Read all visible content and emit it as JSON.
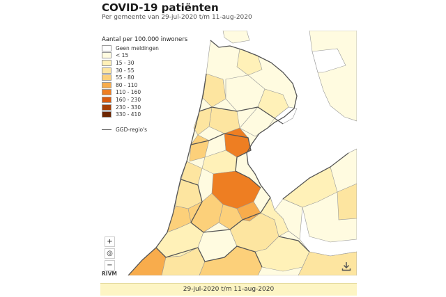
{
  "header": {
    "title": "COVID-19 patiënten",
    "subtitle": "Per gemeente van 29-jul-2020 t/m 11-aug-2020"
  },
  "legend": {
    "title": "Aantal per 100.000 inwoners",
    "items": [
      {
        "label": "Geen meldingen",
        "color": "#ffffff"
      },
      {
        "label": "< 15",
        "color": "#fffbe0"
      },
      {
        "label": "15 - 30",
        "color": "#fff1b8"
      },
      {
        "label": "30 - 55",
        "color": "#fde5a0"
      },
      {
        "label": "55 - 80",
        "color": "#fcd07a"
      },
      {
        "label": "80 - 110",
        "color": "#f8ac4c"
      },
      {
        "label": "110 - 160",
        "color": "#ee7e22"
      },
      {
        "label": "160 - 230",
        "color": "#d95a0f"
      },
      {
        "label": "230 - 330",
        "color": "#a63e06"
      },
      {
        "label": "330 - 410",
        "color": "#6b2500"
      }
    ],
    "line_label": "GGD-regio's"
  },
  "controls": {
    "zoom_in": "+",
    "zoom_reset": "◎",
    "zoom_out": "−",
    "download_icon": "download-icon"
  },
  "footer": {
    "source": "RIVM",
    "date_range": "29-jul-2020 t/m 11-aug-2020"
  },
  "colors": {
    "land_none": "#ffffff",
    "water": "#ffffff",
    "border": "#888888",
    "ggd_border": "#555555"
  }
}
